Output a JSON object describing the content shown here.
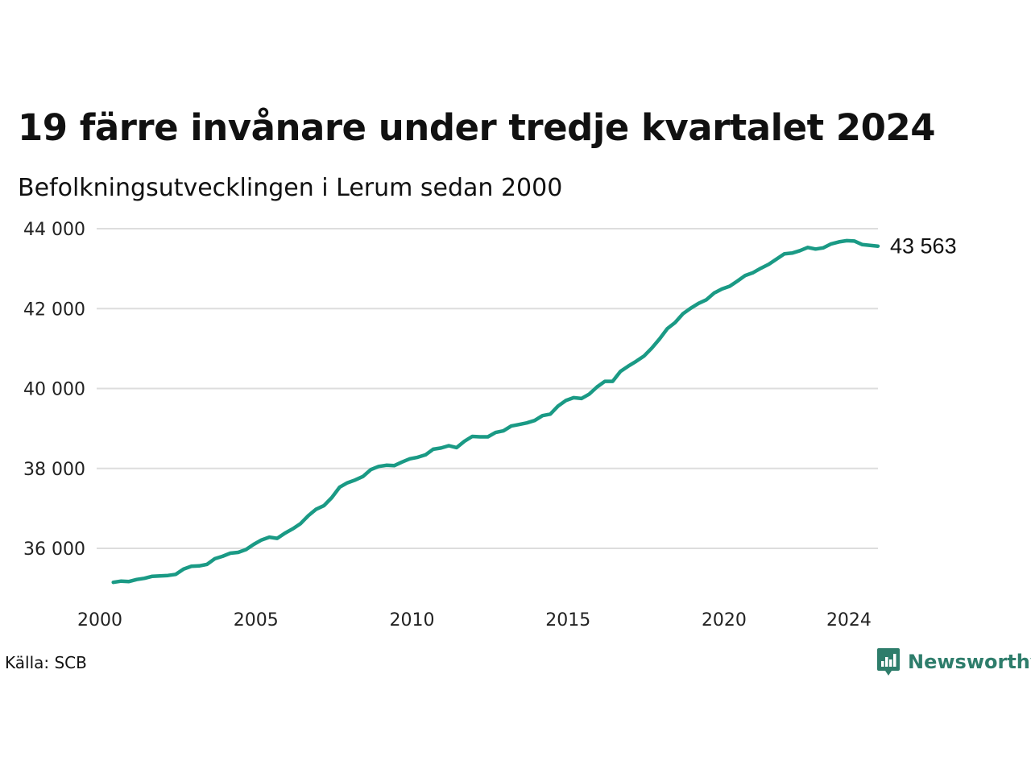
{
  "header": {
    "title": "19 färre invånare under tredje kvartalet 2024",
    "subtitle": "Befolkningsutvecklingen i Lerum sedan 2000"
  },
  "footer": {
    "source": "Källa: SCB",
    "brand": "Newsworthy",
    "brand_icon": "bar-chart-speech-bubble-icon"
  },
  "colors": {
    "line": "#1a9a85",
    "grid": "#dddddd",
    "brand": "#2e7d6b"
  },
  "chart_data": {
    "type": "line",
    "title": "19 färre invånare under tredje kvartalet 2024",
    "subtitle": "Befolkningsutvecklingen i Lerum sedan 2000",
    "xlabel": "",
    "ylabel": "",
    "xlim": [
      2000.0,
      2024.75
    ],
    "ylim": [
      35000,
      44000
    ],
    "x_ticks": [
      2000,
      2005,
      2010,
      2015,
      2020,
      2024
    ],
    "x_tick_labels": [
      "2000",
      "2005",
      "2010",
      "2015",
      "2020",
      "2024"
    ],
    "y_ticks": [
      36000,
      38000,
      40000,
      42000,
      44000
    ],
    "y_tick_labels": [
      "36 000",
      "38 000",
      "40 000",
      "42 000",
      "44 000"
    ],
    "grid": "horizontal",
    "legend": "none",
    "end_label": "43 563",
    "series": [
      {
        "x": [
          2000.25,
          2000.5,
          2000.75,
          2001.0,
          2001.25,
          2001.5,
          2001.75,
          2002.0,
          2002.25,
          2002.5,
          2002.75,
          2003.0,
          2003.25,
          2003.5,
          2003.75,
          2004.0,
          2004.25,
          2004.5,
          2004.75,
          2005.0,
          2005.25,
          2005.5,
          2005.75,
          2006.0,
          2006.25,
          2006.5,
          2006.75,
          2007.0,
          2007.25,
          2007.5,
          2007.75,
          2008.0,
          2008.25,
          2008.5,
          2008.75,
          2009.0,
          2009.25,
          2009.5,
          2009.75,
          2010.0,
          2010.25,
          2010.5,
          2010.75,
          2011.0,
          2011.25,
          2011.5,
          2011.75,
          2012.0,
          2012.25,
          2012.5,
          2012.75,
          2013.0,
          2013.25,
          2013.5,
          2013.75,
          2014.0,
          2014.25,
          2014.5,
          2014.75,
          2015.0,
          2015.25,
          2015.5,
          2015.75,
          2016.0,
          2016.25,
          2016.5,
          2016.75,
          2017.0,
          2017.25,
          2017.5,
          2017.75,
          2018.0,
          2018.25,
          2018.5,
          2018.75,
          2019.0,
          2019.25,
          2019.5,
          2019.75,
          2020.0,
          2020.25,
          2020.5,
          2020.75,
          2021.0,
          2021.25,
          2021.5,
          2021.75,
          2022.0,
          2022.25,
          2022.5,
          2022.75,
          2023.0,
          2023.25,
          2023.5,
          2023.75,
          2024.0,
          2024.25,
          2024.5,
          2024.75
        ],
        "values": [
          35150,
          35180,
          35170,
          35220,
          35250,
          35300,
          35310,
          35320,
          35350,
          35480,
          35550,
          35560,
          35600,
          35740,
          35800,
          35880,
          35900,
          35970,
          36100,
          36210,
          36280,
          36250,
          36380,
          36490,
          36620,
          36820,
          36980,
          37070,
          37270,
          37530,
          37640,
          37710,
          37800,
          37970,
          38050,
          38080,
          38070,
          38160,
          38240,
          38280,
          38340,
          38480,
          38510,
          38570,
          38520,
          38680,
          38800,
          38790,
          38790,
          38900,
          38940,
          39060,
          39100,
          39140,
          39200,
          39320,
          39360,
          39560,
          39700,
          39770,
          39750,
          39860,
          40040,
          40180,
          40180,
          40430,
          40560,
          40680,
          40810,
          41010,
          41240,
          41500,
          41650,
          41870,
          42010,
          42130,
          42220,
          42390,
          42490,
          42560,
          42690,
          42830,
          42900,
          43010,
          43110,
          43240,
          43370,
          43390,
          43450,
          43530,
          43490,
          43520,
          43620,
          43670,
          43700,
          43690,
          43600,
          43580,
          43563
        ]
      }
    ]
  }
}
